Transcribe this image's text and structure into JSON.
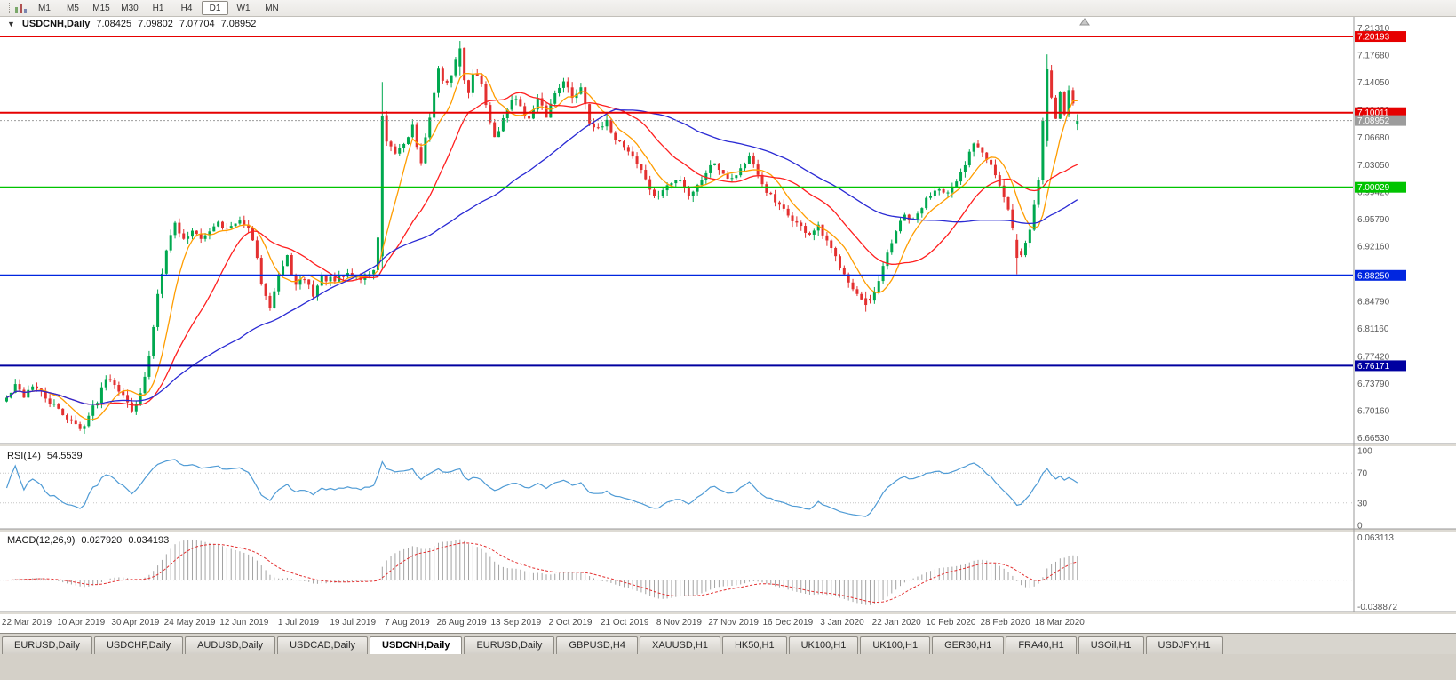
{
  "toolbar": {
    "timeframes": [
      "M1",
      "M5",
      "M15",
      "M30",
      "H1",
      "H4",
      "D1",
      "W1",
      "MN"
    ],
    "active": "D1"
  },
  "chart": {
    "title": {
      "symbol": "USDCNH,Daily",
      "open": "7.08425",
      "high": "7.09802",
      "low": "7.07704",
      "close": "7.08952"
    },
    "colors": {
      "up": "#00a84f",
      "down": "#e33030",
      "background": "#ffffff"
    },
    "price_axis": {
      "max": 7.221,
      "min": 6.66,
      "ticks": [
        "7.21310",
        "7.17680",
        "7.14050",
        "7.10420",
        "7.06680",
        "7.03050",
        "6.99420",
        "6.95790",
        "6.92160",
        "6.88530",
        "6.84790",
        "6.81160",
        "6.77420",
        "6.73790",
        "6.70160",
        "6.66530"
      ]
    },
    "hlines": [
      {
        "value": 7.20193,
        "label": "7.20193",
        "color": "#e60000",
        "width": 2,
        "dash": false
      },
      {
        "value": 7.10011,
        "label": "7.10011",
        "color": "#e60000",
        "width": 2,
        "dash": false
      },
      {
        "value": 7.08952,
        "label": "7.08952",
        "color": "#9c9c9c",
        "width": 1,
        "dash": true
      },
      {
        "value": 7.00029,
        "label": "7.00029",
        "color": "#00c400",
        "width": 2,
        "dash": false
      },
      {
        "value": 6.8825,
        "label": "6.88250",
        "color": "#0026e0",
        "width": 2,
        "dash": false
      },
      {
        "value": 6.76171,
        "label": "6.76171",
        "color": "#0000a0",
        "width": 2,
        "dash": false
      }
    ],
    "moving_averages": [
      {
        "period": 8,
        "color": "#ff9d00"
      },
      {
        "period": 21,
        "color": "#ff1f1f"
      },
      {
        "period": 55,
        "color": "#2a2ad4"
      }
    ],
    "candles": {
      "count": 249,
      "keyframes": [
        [
          0,
          6.718
        ],
        [
          2,
          6.734
        ],
        [
          4,
          6.722
        ],
        [
          6,
          6.736
        ],
        [
          9,
          6.718
        ],
        [
          12,
          6.702
        ],
        [
          15,
          6.688
        ],
        [
          17,
          6.676
        ],
        [
          19,
          6.695
        ],
        [
          21,
          6.716
        ],
        [
          23,
          6.748
        ],
        [
          25,
          6.74
        ],
        [
          27,
          6.72
        ],
        [
          29,
          6.705
        ],
        [
          31,
          6.722
        ],
        [
          33,
          6.772
        ],
        [
          35,
          6.858
        ],
        [
          37,
          6.92
        ],
        [
          39,
          6.952
        ],
        [
          41,
          6.93
        ],
        [
          43,
          6.944
        ],
        [
          45,
          6.928
        ],
        [
          47,
          6.944
        ],
        [
          49,
          6.956
        ],
        [
          51,
          6.944
        ],
        [
          53,
          6.95
        ],
        [
          55,
          6.954
        ],
        [
          57,
          6.93
        ],
        [
          59,
          6.874
        ],
        [
          61,
          6.843
        ],
        [
          63,
          6.882
        ],
        [
          65,
          6.906
        ],
        [
          67,
          6.868
        ],
        [
          69,
          6.879
        ],
        [
          71,
          6.857
        ],
        [
          73,
          6.88
        ],
        [
          76,
          6.874
        ],
        [
          79,
          6.885
        ],
        [
          82,
          6.878
        ],
        [
          85,
          6.89
        ],
        [
          86,
          6.93
        ],
        [
          87,
          7.095
        ],
        [
          88,
          7.057
        ],
        [
          90,
          7.046
        ],
        [
          92,
          7.06
        ],
        [
          94,
          7.082
        ],
        [
          96,
          7.03
        ],
        [
          98,
          7.097
        ],
        [
          100,
          7.156
        ],
        [
          102,
          7.136
        ],
        [
          104,
          7.17
        ],
        [
          105,
          7.185
        ],
        [
          106,
          7.146
        ],
        [
          107,
          7.127
        ],
        [
          108,
          7.155
        ],
        [
          110,
          7.14
        ],
        [
          112,
          7.086
        ],
        [
          113,
          7.064
        ],
        [
          115,
          7.09
        ],
        [
          117,
          7.12
        ],
        [
          119,
          7.11
        ],
        [
          121,
          7.09
        ],
        [
          123,
          7.116
        ],
        [
          125,
          7.096
        ],
        [
          127,
          7.126
        ],
        [
          129,
          7.146
        ],
        [
          131,
          7.118
        ],
        [
          133,
          7.136
        ],
        [
          135,
          7.09
        ],
        [
          137,
          7.076
        ],
        [
          139,
          7.086
        ],
        [
          141,
          7.066
        ],
        [
          143,
          7.056
        ],
        [
          145,
          7.042
        ],
        [
          148,
          7.012
        ],
        [
          150,
          6.985
        ],
        [
          153,
          7.002
        ],
        [
          156,
          7.012
        ],
        [
          158,
          6.99
        ],
        [
          160,
          7.002
        ],
        [
          162,
          7.022
        ],
        [
          164,
          7.034
        ],
        [
          166,
          7.02
        ],
        [
          168,
          7.012
        ],
        [
          170,
          7.026
        ],
        [
          172,
          7.04
        ],
        [
          174,
          7.014
        ],
        [
          176,
          6.996
        ],
        [
          178,
          6.98
        ],
        [
          180,
          6.968
        ],
        [
          182,
          6.958
        ],
        [
          184,
          6.946
        ],
        [
          186,
          6.938
        ],
        [
          188,
          6.946
        ],
        [
          190,
          6.926
        ],
        [
          192,
          6.906
        ],
        [
          194,
          6.888
        ],
        [
          196,
          6.864
        ],
        [
          198,
          6.848
        ],
        [
          200,
          6.846
        ],
        [
          202,
          6.872
        ],
        [
          204,
          6.912
        ],
        [
          206,
          6.942
        ],
        [
          208,
          6.962
        ],
        [
          210,
          6.954
        ],
        [
          212,
          6.974
        ],
        [
          214,
          6.992
        ],
        [
          216,
          7.002
        ],
        [
          218,
          6.992
        ],
        [
          220,
          7.004
        ],
        [
          222,
          7.03
        ],
        [
          224,
          7.062
        ],
        [
          226,
          7.05
        ],
        [
          228,
          7.032
        ],
        [
          230,
          7.002
        ],
        [
          232,
          6.968
        ],
        [
          234,
          6.918
        ],
        [
          235,
          6.908
        ],
        [
          237,
          6.944
        ],
        [
          239,
          7.01
        ],
        [
          240,
          7.09
        ],
        [
          241,
          7.158
        ],
        [
          242,
          7.122
        ],
        [
          243,
          7.095
        ],
        [
          244,
          7.128
        ],
        [
          245,
          7.1
        ],
        [
          246,
          7.13
        ],
        [
          247,
          7.112
        ],
        [
          248,
          7.0895
        ]
      ],
      "overrides": {
        "87": [
          6.908,
          7.141,
          6.892,
          7.096
        ],
        "105": [
          7.162,
          7.196,
          7.15,
          7.186
        ],
        "199": [
          6.852,
          6.861,
          6.834,
          6.843
        ],
        "234": [
          6.93,
          6.938,
          6.884,
          6.906
        ],
        "241": [
          7.062,
          7.178,
          7.055,
          7.158
        ],
        "248": [
          7.08425,
          7.09802,
          7.07704,
          7.08952
        ]
      }
    },
    "time_axis": [
      "22 Mar 2019",
      "10 Apr 2019",
      "30 Apr 2019",
      "24 May 2019",
      "12 Jun 2019",
      "1 Jul 2019",
      "19 Jul 2019",
      "7 Aug 2019",
      "26 Aug 2019",
      "13 Sep 2019",
      "2 Oct 2019",
      "21 Oct 2019",
      "8 Nov 2019",
      "27 Nov 2019",
      "16 Dec 2019",
      "3 Jan 2020",
      "22 Jan 2020",
      "10 Feb 2020",
      "28 Feb 2020",
      "18 Mar 2020"
    ]
  },
  "rsi": {
    "title_label": "RSI(14)",
    "value": "54.5539",
    "period": 14,
    "levels": [
      "100",
      "70",
      "30",
      "0"
    ],
    "color": "#4f9bd5"
  },
  "macd": {
    "title_label": "MACD(12,26,9)",
    "main_value": "0.027920",
    "signal_value": "0.034193",
    "scale_max": "0.063113",
    "scale_min": "-0.038872",
    "histogram_color": "#a3a3a3",
    "signal_color": "#e33030"
  },
  "tabs": {
    "items": [
      "EURUSD,Daily",
      "USDCHF,Daily",
      "AUDUSD,Daily",
      "USDCAD,Daily",
      "USDCNH,Daily",
      "EURUSD,Daily",
      "GBPUSD,H4",
      "XAUUSD,H1",
      "HK50,H1",
      "UK100,H1",
      "UK100,H1",
      "GER30,H1",
      "FRA40,H1",
      "USOil,H1",
      "USDJPY,H1"
    ],
    "active_index": 4
  }
}
